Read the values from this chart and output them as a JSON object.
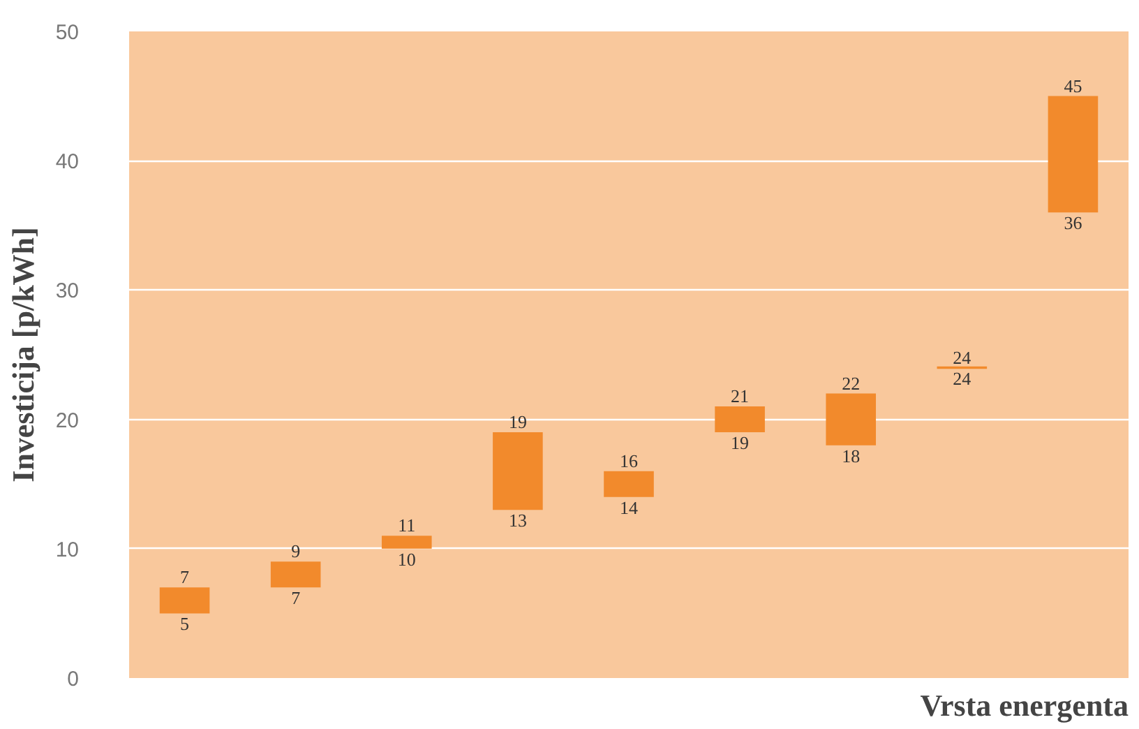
{
  "chart_data": {
    "type": "bar",
    "ylabel": "Investicija [p/kWh]",
    "xlabel": "Vrsta energenta",
    "categories": [
      null,
      null,
      null,
      null,
      null,
      null,
      null,
      null,
      null
    ],
    "base": [
      5,
      7,
      10,
      13,
      14,
      19,
      18,
      24,
      36
    ],
    "values": [
      2,
      2,
      1,
      6,
      2,
      2,
      4,
      0,
      9
    ],
    "color": "#f28a2c",
    "ylim": [
      0,
      50
    ],
    "yticks": [
      0,
      10,
      20,
      30,
      40,
      50
    ],
    "grid": "y",
    "annotations": [
      {
        "text": "7",
        "y": 7
      },
      {
        "text": "5",
        "y": 5
      },
      {
        "text": "9",
        "y": 9
      },
      {
        "text": "7",
        "y": 7
      },
      {
        "text": "11",
        "y": 11
      },
      {
        "text": "10",
        "y": 10
      },
      {
        "text": "19",
        "y": 19
      },
      {
        "text": "13",
        "y": 13
      },
      {
        "text": "16",
        "y": 16
      },
      {
        "text": "14",
        "y": 14
      },
      {
        "text": "21",
        "y": 21
      },
      {
        "text": "19",
        "y": 19
      },
      {
        "text": "22",
        "y": 22
      },
      {
        "text": "18",
        "y": 18
      },
      {
        "text": "24",
        "y": 24
      },
      {
        "text": "24",
        "y": 24
      },
      {
        "text": "45",
        "y": 45
      },
      {
        "text": "36",
        "y": 36
      }
    ]
  }
}
